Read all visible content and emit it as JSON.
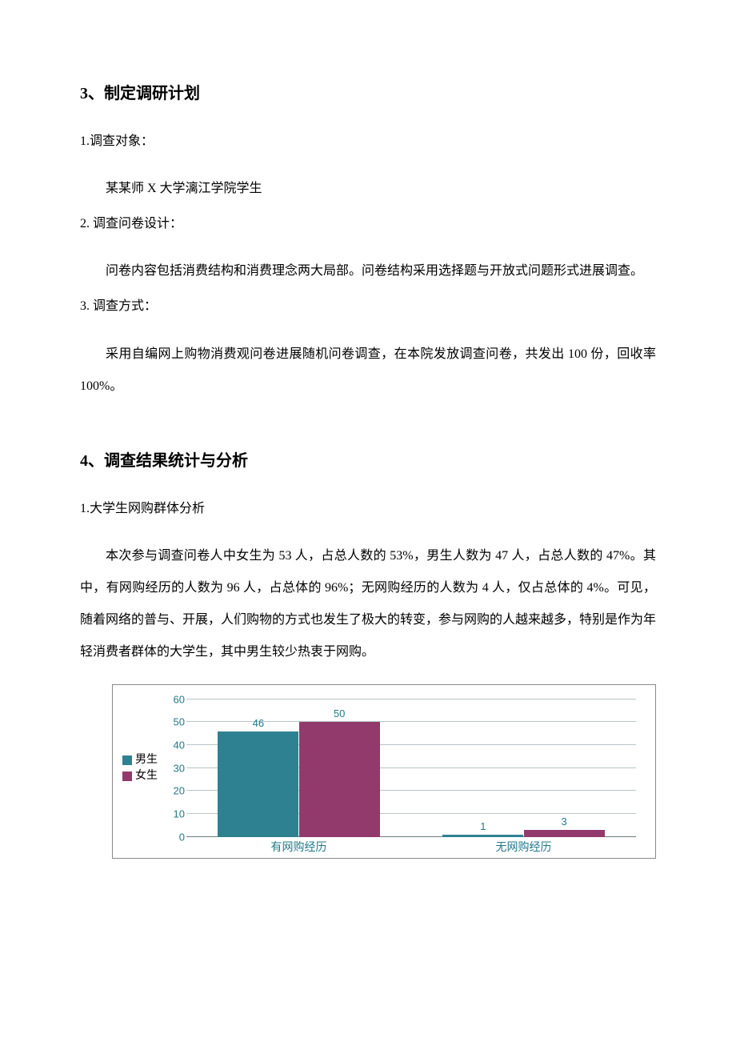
{
  "section3": {
    "heading": "3、制定调研计划",
    "item1_label": "1.调查对象：",
    "item1_body": "某某师 X 大学漓江学院学生",
    "item2_label": "2. 调查问卷设计：",
    "item2_body": "问卷内容包括消费结构和消费理念两大局部。问卷结构采用选择题与开放式问题形式进展调查。",
    "item3_label": "3. 调查方式：",
    "item3_body": "采用自编网上购物消费观问卷进展随机问卷调查，在本院发放调查问卷，共发出 100 份，回收率 100%。"
  },
  "section4": {
    "heading": "4、调查结果统计与分析",
    "item1_label": "1.大学生网购群体分析",
    "item1_body": "本次参与调查问卷人中女生为 53 人，占总人数的 53%，男生人数为 47 人，占总人数的 47%。其中，有网购经历的人数为 96 人，占总体的 96%；无网购经历的人数为 4 人，仅占总体的 4%。可见，随着网络的普与、开展，人们购物的方式也发生了极大的转变，参与网购的人越来越多，特别是作为年轻消费者群体的大学生，其中男生较少热衷于网购。"
  },
  "chart": {
    "type": "bar",
    "legend": [
      {
        "label": "男生",
        "color": "#2e8191"
      },
      {
        "label": "女生",
        "color": "#923a6b"
      }
    ],
    "categories": [
      "有网购经历",
      "无网购经历"
    ],
    "series": [
      {
        "name": "男生",
        "values": [
          46,
          1
        ],
        "color": "#2e8191"
      },
      {
        "name": "女生",
        "values": [
          50,
          3
        ],
        "color": "#923a6b"
      }
    ],
    "y": {
      "min": 0,
      "max": 60,
      "step": 10,
      "tick_color": "#227a8a",
      "tick_fontsize": 13
    },
    "grid_color": "#b9c5c8",
    "baseline_color": "#6b7b7e",
    "background": "#ffffff",
    "border_color": "#8a8a8a",
    "bar_group_width_pct": 36,
    "bar_label_fontsize": 13,
    "xlabel_color": "#227a8a",
    "xlabel_fontsize": 14
  }
}
